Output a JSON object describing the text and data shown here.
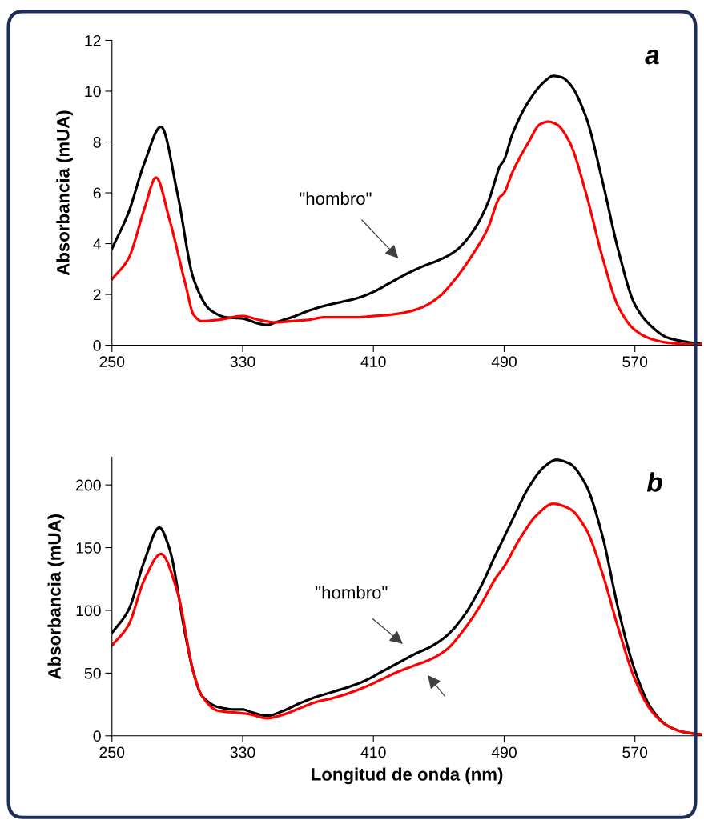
{
  "chart_data": [
    {
      "type": "line",
      "ylabel": "Absorbancia (mUA)",
      "xlim": [
        250,
        611
      ],
      "xticks": [
        250,
        330,
        410,
        490,
        570
      ],
      "ylim": [
        0,
        12
      ],
      "yticks": [
        0,
        2,
        4,
        6,
        8,
        10,
        12
      ],
      "grid": false,
      "marker": "none",
      "line_style": "solid",
      "annotations": [
        "a",
        "\"hombro\""
      ],
      "series": [
        {
          "color": "#000000",
          "x": [
            250,
            260,
            270,
            280,
            290,
            300,
            310,
            320,
            330,
            340,
            345,
            350,
            360,
            370,
            380,
            390,
            400,
            410,
            420,
            430,
            440,
            450,
            460,
            470,
            480,
            485,
            487,
            490,
            495,
            505,
            515,
            520,
            525,
            530,
            540,
            550,
            560,
            570,
            580,
            590,
            600,
            611
          ],
          "values": [
            3.8,
            5.2,
            7.2,
            8.6,
            6.0,
            2.6,
            1.4,
            1.1,
            1.05,
            0.85,
            0.8,
            0.9,
            1.1,
            1.35,
            1.55,
            1.7,
            1.85,
            2.1,
            2.45,
            2.8,
            3.1,
            3.35,
            3.7,
            4.4,
            5.6,
            6.6,
            7.0,
            7.3,
            8.3,
            9.6,
            10.4,
            10.6,
            10.55,
            10.3,
            9.0,
            6.5,
            3.7,
            1.6,
            0.75,
            0.3,
            0.15,
            0.05
          ]
        },
        {
          "color": "#ff0000",
          "x": [
            250,
            260,
            270,
            277,
            285,
            295,
            300,
            305,
            315,
            330,
            340,
            350,
            360,
            370,
            380,
            390,
            400,
            410,
            420,
            430,
            440,
            450,
            460,
            470,
            480,
            487,
            490,
            495,
            505,
            512,
            517,
            522,
            530,
            540,
            550,
            560,
            570,
            580,
            590,
            600,
            611
          ],
          "values": [
            2.6,
            3.4,
            5.4,
            6.6,
            5.0,
            2.4,
            1.2,
            0.95,
            1.0,
            1.15,
            1.0,
            0.9,
            0.95,
            1.0,
            1.1,
            1.1,
            1.1,
            1.15,
            1.2,
            1.3,
            1.5,
            1.9,
            2.6,
            3.5,
            4.6,
            5.8,
            6.0,
            6.8,
            8.0,
            8.7,
            8.8,
            8.7,
            8.0,
            6.0,
            3.5,
            1.5,
            0.6,
            0.25,
            0.1,
            0.05,
            0.02
          ]
        }
      ]
    },
    {
      "type": "line",
      "ylabel": "Absorbancia (mUA)",
      "xlabel": "Longitud de onda (nm)",
      "xlim": [
        250,
        611
      ],
      "xticks": [
        250,
        330,
        410,
        490,
        570
      ],
      "ylim": [
        0,
        222
      ],
      "yticks": [
        0,
        50,
        100,
        150,
        200
      ],
      "grid": false,
      "marker": "none",
      "line_style": "solid",
      "annotations": [
        "b",
        "\"hombro\""
      ],
      "series": [
        {
          "color": "#000000",
          "x": [
            250,
            260,
            270,
            279,
            285,
            295,
            300,
            305,
            315,
            325,
            330,
            335,
            345,
            355,
            365,
            375,
            385,
            395,
            405,
            415,
            425,
            435,
            445,
            455,
            465,
            475,
            485,
            488,
            495,
            505,
            515,
            522,
            530,
            540,
            550,
            560,
            570,
            580,
            590,
            600,
            611
          ],
          "values": [
            82,
            100,
            140,
            166,
            150,
            80,
            50,
            32,
            23,
            21,
            21,
            19,
            16,
            20,
            26,
            31,
            35,
            39,
            44,
            51,
            58,
            65,
            71,
            80,
            95,
            117,
            145,
            153,
            172,
            198,
            215,
            220,
            217,
            200,
            160,
            100,
            52,
            22,
            8,
            3,
            1
          ]
        },
        {
          "color": "#ff0000",
          "x": [
            250,
            260,
            270,
            280,
            290,
            300,
            305,
            315,
            330,
            335,
            345,
            355,
            365,
            375,
            385,
            395,
            405,
            415,
            425,
            435,
            445,
            455,
            465,
            475,
            485,
            490,
            500,
            510,
            520,
            530,
            540,
            550,
            560,
            570,
            580,
            590,
            600,
            611
          ],
          "values": [
            72,
            88,
            125,
            145,
            115,
            50,
            32,
            20,
            18,
            17,
            14,
            17,
            22,
            27,
            30,
            34,
            39,
            45,
            51,
            56,
            61,
            69,
            84,
            103,
            126,
            135,
            158,
            176,
            185,
            181,
            165,
            130,
            85,
            45,
            20,
            8,
            3,
            1
          ]
        }
      ]
    }
  ]
}
